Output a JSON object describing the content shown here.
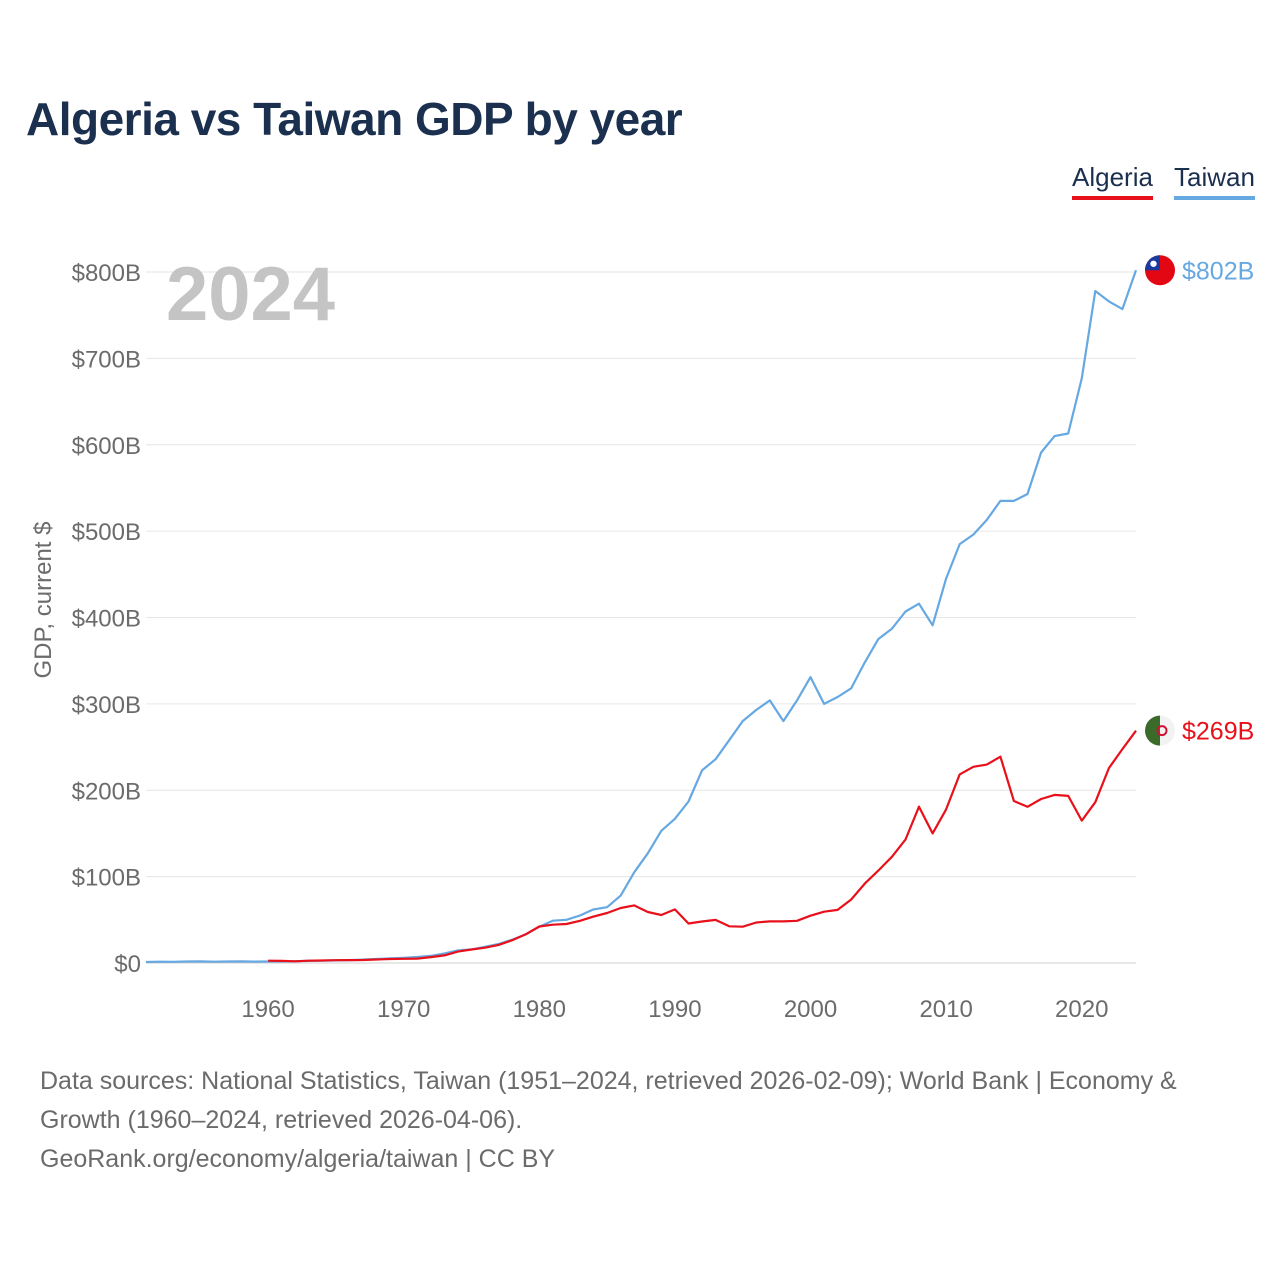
{
  "title": "Algeria vs Taiwan GDP by year",
  "legend": [
    {
      "name": "Algeria",
      "color": "#e8101a"
    },
    {
      "name": "Taiwan",
      "color": "#66a8e2"
    }
  ],
  "footer": {
    "sources": "Data sources: National Statistics, Taiwan (1951–2024, retrieved 2026-02-09); World Bank | Economy & Growth (1960–2024, retrieved 2026-04-06).",
    "attribution": "GeoRank.org/economy/algeria/taiwan | CC BY"
  },
  "chart_data": {
    "type": "line",
    "title": "Algeria vs Taiwan GDP by year",
    "ylabel": "GDP, current $",
    "xlabel": "",
    "year_label": "2024",
    "xlim": [
      1951,
      2024
    ],
    "ylim": [
      0,
      800
    ],
    "x_ticks": [
      1960,
      1970,
      1980,
      1990,
      2000,
      2010,
      2020
    ],
    "y_ticks": [
      0,
      100,
      200,
      300,
      400,
      500,
      600,
      700,
      800
    ],
    "y_tick_labels": [
      "$0",
      "$100B",
      "$200B",
      "$300B",
      "$400B",
      "$500B",
      "$600B",
      "$700B",
      "$800B"
    ],
    "grid": true,
    "series": [
      {
        "name": "Taiwan",
        "color": "#66a8e2",
        "end_label": "$802B",
        "flag_icon": "taiwan-flag-icon",
        "x": [
          1951,
          1952,
          1953,
          1954,
          1955,
          1956,
          1957,
          1958,
          1959,
          1960,
          1961,
          1962,
          1963,
          1964,
          1965,
          1966,
          1967,
          1968,
          1969,
          1970,
          1971,
          1972,
          1973,
          1974,
          1975,
          1976,
          1977,
          1978,
          1979,
          1980,
          1981,
          1982,
          1983,
          1984,
          1985,
          1986,
          1987,
          1988,
          1989,
          1990,
          1991,
          1992,
          1993,
          1994,
          1995,
          1996,
          1997,
          1998,
          1999,
          2000,
          2001,
          2002,
          2003,
          2004,
          2005,
          2006,
          2007,
          2008,
          2009,
          2010,
          2011,
          2012,
          2013,
          2014,
          2015,
          2016,
          2017,
          2018,
          2019,
          2020,
          2021,
          2022,
          2023,
          2024
        ],
        "values": [
          1.2,
          1.5,
          1.4,
          1.7,
          1.9,
          1.5,
          1.7,
          1.8,
          1.6,
          1.7,
          1.9,
          2.1,
          2.4,
          2.8,
          3.0,
          3.4,
          3.9,
          4.6,
          5.3,
          6.0,
          6.9,
          8.2,
          11.0,
          14.5,
          15.7,
          18.8,
          22.0,
          27.0,
          33.0,
          42.0,
          49.0,
          50.0,
          55.0,
          62.0,
          64.6,
          78.0,
          105.0,
          127.0,
          153.0,
          167.0,
          187.0,
          223.0,
          236.0,
          258.0,
          280.0,
          293.0,
          304.0,
          280.0,
          304.0,
          331.0,
          300.0,
          308.0,
          318.0,
          348.0,
          375.0,
          387.0,
          407.0,
          416.0,
          391.0,
          445.0,
          485.0,
          496.0,
          513.0,
          535.0,
          535.0,
          543.0,
          591.0,
          610.0,
          613.0,
          677.0,
          778.0,
          766.0,
          757.0,
          802.0
        ]
      },
      {
        "name": "Algeria",
        "color": "#e8101a",
        "end_label": "$269B",
        "flag_icon": "algeria-flag-icon",
        "x": [
          1960,
          1961,
          1962,
          1963,
          1964,
          1965,
          1966,
          1967,
          1968,
          1969,
          1970,
          1971,
          1972,
          1973,
          1974,
          1975,
          1976,
          1977,
          1978,
          1979,
          1980,
          1981,
          1982,
          1983,
          1984,
          1985,
          1986,
          1987,
          1988,
          1989,
          1990,
          1991,
          1992,
          1993,
          1994,
          1995,
          1996,
          1997,
          1998,
          1999,
          2000,
          2001,
          2002,
          2003,
          2004,
          2005,
          2006,
          2007,
          2008,
          2009,
          2010,
          2011,
          2012,
          2013,
          2014,
          2015,
          2016,
          2017,
          2018,
          2019,
          2020,
          2021,
          2022,
          2023,
          2024
        ],
        "values": [
          2.7,
          2.4,
          2.0,
          2.7,
          2.9,
          3.2,
          3.3,
          3.5,
          4.1,
          4.6,
          4.9,
          5.1,
          6.8,
          8.8,
          13.2,
          15.6,
          17.7,
          21.0,
          26.4,
          33.2,
          42.3,
          44.3,
          45.2,
          48.8,
          53.7,
          57.9,
          63.7,
          66.7,
          59.1,
          55.6,
          62.0,
          45.7,
          48.0,
          49.9,
          42.5,
          42.0,
          46.9,
          48.2,
          48.2,
          48.8,
          54.8,
          59.4,
          61.5,
          73.5,
          91.9,
          107.0,
          123.0,
          143.0,
          181.0,
          150.0,
          177.8,
          218.3,
          227.1,
          229.7,
          238.9,
          187.5,
          180.8,
          189.9,
          194.6,
          193.5,
          164.9,
          186.2,
          225.6,
          247.6,
          269.0
        ]
      }
    ]
  }
}
